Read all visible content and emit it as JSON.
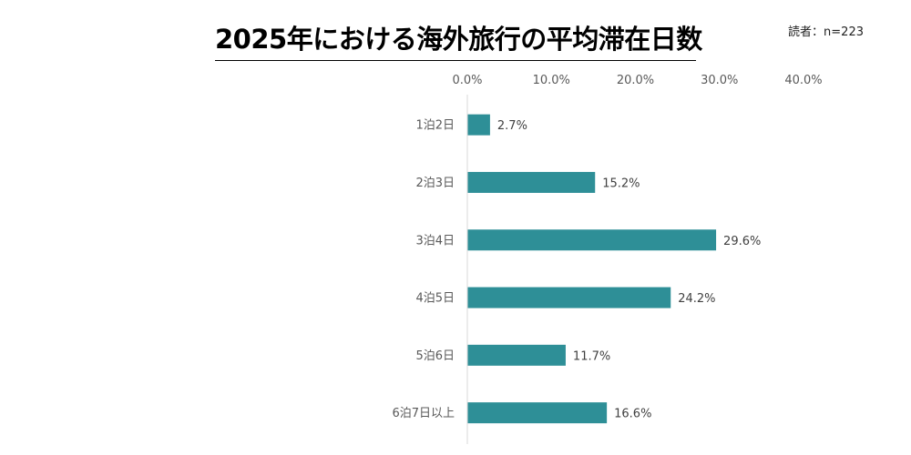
{
  "chart_data": {
    "type": "bar",
    "orientation": "horizontal",
    "title": "2025年における海外旅行の平均滞在日数",
    "note": "読者：n=223",
    "categories": [
      "1泊2日",
      "2泊3日",
      "3泊4日",
      "4泊5日",
      "5泊6日",
      "6泊7日以上"
    ],
    "values": [
      2.7,
      15.2,
      29.6,
      24.2,
      11.7,
      16.6
    ],
    "data_labels": [
      "2.7%",
      "15.2%",
      "29.6%",
      "24.2%",
      "11.7%",
      "16.6%"
    ],
    "x_ticks": [
      0,
      10,
      20,
      30,
      40
    ],
    "x_tick_labels": [
      "0.0%",
      "10.0%",
      "20.0%",
      "30.0%",
      "40.0%"
    ],
    "xlim": [
      0,
      40
    ],
    "axis_position": "top",
    "grid": false,
    "legend": "none",
    "bar_color": "#2e8f97"
  }
}
